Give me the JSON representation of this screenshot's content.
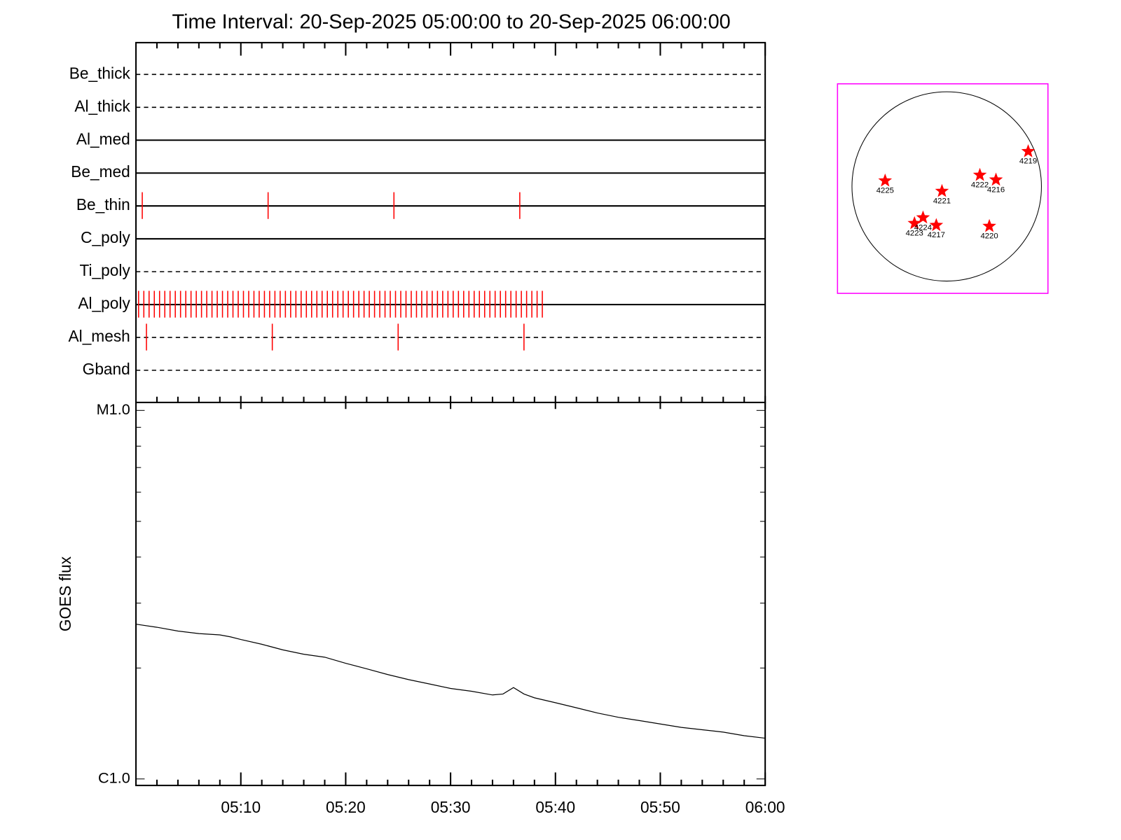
{
  "chart_data": [
    {
      "type": "timeline",
      "title": "Time Interval: 20-Sep-2025 05:00:00 to 20-Sep-2025 06:00:00",
      "categories": [
        "Be_thick",
        "Al_thick",
        "Al_med",
        "Be_med",
        "Be_thin",
        "C_poly",
        "Ti_poly",
        "Al_poly",
        "Al_mesh",
        "Gband"
      ],
      "line_styles": [
        "dashed",
        "dashed",
        "solid",
        "solid",
        "solid",
        "solid",
        "dashed",
        "solid",
        "dashed",
        "dashed"
      ],
      "event_color": "#ff0000",
      "events": [
        [],
        [],
        [],
        [],
        [
          0.6,
          12.6,
          24.6,
          36.6
        ],
        [],
        [],
        [
          0.25,
          0.75,
          1.25,
          1.75,
          2.25,
          2.75,
          3.25,
          3.75,
          4.25,
          4.75,
          5.25,
          5.75,
          6.25,
          6.75,
          7.25,
          7.75,
          8.25,
          8.75,
          9.25,
          9.75,
          10.25,
          10.75,
          11.25,
          11.75,
          12.25,
          12.75,
          13.25,
          13.75,
          14.25,
          14.75,
          15.25,
          15.75,
          16.25,
          16.75,
          17.25,
          17.75,
          18.25,
          18.75,
          19.25,
          19.75,
          20.25,
          20.75,
          21.25,
          21.75,
          22.25,
          22.75,
          23.25,
          23.75,
          24.25,
          24.75,
          25.25,
          25.75,
          26.25,
          26.75,
          27.25,
          27.75,
          28.25,
          28.75,
          29.25,
          29.75,
          30.25,
          30.75,
          31.25,
          31.75,
          32.25,
          32.75,
          33.25,
          33.75,
          34.25,
          34.75,
          35.25,
          35.75,
          36.25,
          36.75,
          37.25,
          37.75,
          38.25,
          38.75
        ],
        [
          1.0,
          13.0,
          25.0,
          37.0
        ],
        []
      ]
    },
    {
      "type": "line",
      "y_label": "GOES flux",
      "log_y": true,
      "color": "#000000",
      "xlim": [
        0,
        60
      ],
      "xticks": [
        {
          "value": 10,
          "label": "05:10"
        },
        {
          "value": 20,
          "label": "05:20"
        },
        {
          "value": 30,
          "label": "05:30"
        },
        {
          "value": 40,
          "label": "05:40"
        },
        {
          "value": 50,
          "label": "05:50"
        },
        {
          "value": 60,
          "label": "06:00"
        }
      ],
      "xminorticks": [
        2,
        4,
        6,
        8,
        12,
        14,
        16,
        18,
        22,
        24,
        26,
        28,
        32,
        34,
        36,
        38,
        42,
        44,
        46,
        48,
        52,
        54,
        56,
        58
      ],
      "ylim": [
        1e-06,
        1e-05
      ],
      "yticks": [
        {
          "value": 1e-06,
          "label": "C1.0"
        },
        {
          "value": 1e-05,
          "label": "M1.0"
        }
      ],
      "yminorticks": [
        2e-06,
        3e-06,
        4e-06,
        5e-06,
        6e-06,
        7e-06,
        8e-06,
        9e-06
      ],
      "x": [
        0,
        2,
        4,
        6,
        8,
        9,
        10,
        12,
        14,
        16,
        18,
        20,
        22,
        24,
        26,
        28,
        30,
        32,
        34,
        35,
        36,
        37,
        38,
        40,
        42,
        44,
        46,
        48,
        50,
        52,
        54,
        56,
        58,
        60
      ],
      "values": [
        2.63e-06,
        2.58e-06,
        2.52e-06,
        2.48e-06,
        2.46e-06,
        2.43e-06,
        2.39e-06,
        2.32e-06,
        2.24e-06,
        2.18e-06,
        2.14e-06,
        2.06e-06,
        1.99e-06,
        1.92e-06,
        1.86e-06,
        1.81e-06,
        1.76e-06,
        1.73e-06,
        1.69e-06,
        1.7e-06,
        1.77e-06,
        1.7e-06,
        1.66e-06,
        1.61e-06,
        1.56e-06,
        1.51e-06,
        1.47e-06,
        1.44e-06,
        1.41e-06,
        1.38e-06,
        1.36e-06,
        1.34e-06,
        1.31e-06,
        1.29e-06
      ]
    },
    {
      "type": "scatter",
      "color": "#ff0000",
      "labels": [
        "4219",
        "4225",
        "4221",
        "4222",
        "4216",
        "4223",
        "4224",
        "4217",
        "4220"
      ],
      "x": [
        0.86,
        -0.65,
        -0.05,
        0.35,
        0.52,
        -0.34,
        -0.25,
        -0.11,
        0.45
      ],
      "values": [
        0.37,
        0.06,
        -0.05,
        0.12,
        0.07,
        -0.39,
        -0.33,
        -0.41,
        -0.42
      ]
    }
  ]
}
